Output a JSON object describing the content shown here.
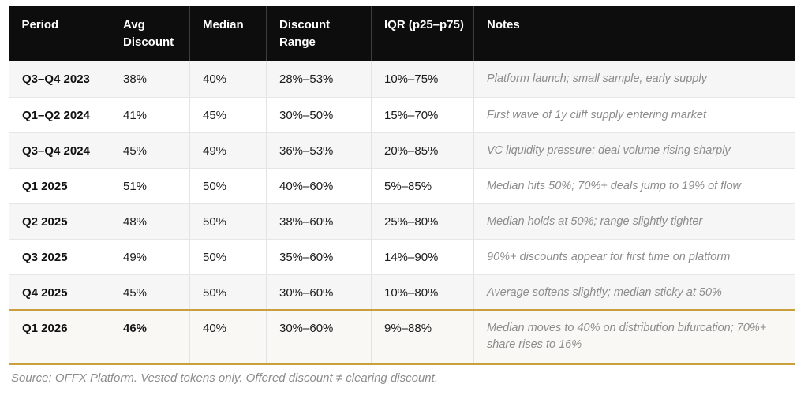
{
  "chart_data": {
    "type": "table",
    "columns": [
      "Period",
      "Avg Discount",
      "Median",
      "Discount Range",
      "IQR (p25–p75)",
      "Notes"
    ],
    "rows": [
      {
        "period": "Q3–Q4 2023",
        "avg": "38%",
        "median": "40%",
        "range": "28%–53%",
        "iqr": "10%–75%",
        "notes": "Platform launch; small sample, early supply",
        "highlight": false
      },
      {
        "period": "Q1–Q2 2024",
        "avg": "41%",
        "median": "45%",
        "range": "30%–50%",
        "iqr": "15%–70%",
        "notes": "First wave of 1y cliff supply entering market",
        "highlight": false
      },
      {
        "period": "Q3–Q4 2024",
        "avg": "45%",
        "median": "49%",
        "range": "36%–53%",
        "iqr": "20%–85%",
        "notes": "VC liquidity pressure; deal volume rising sharply",
        "highlight": false
      },
      {
        "period": "Q1 2025",
        "avg": "51%",
        "median": "50%",
        "range": "40%–60%",
        "iqr": "5%–85%",
        "notes": "Median hits 50%; 70%+ deals jump to 19% of flow",
        "highlight": false
      },
      {
        "period": "Q2 2025",
        "avg": "48%",
        "median": "50%",
        "range": "38%–60%",
        "iqr": "25%–80%",
        "notes": "Median holds at 50%; range slightly tighter",
        "highlight": false
      },
      {
        "period": "Q3 2025",
        "avg": "49%",
        "median": "50%",
        "range": "35%–60%",
        "iqr": "14%–90%",
        "notes": "90%+ discounts appear for first time on platform",
        "highlight": false
      },
      {
        "period": "Q4 2025",
        "avg": "45%",
        "median": "50%",
        "range": "30%–60%",
        "iqr": "10%–80%",
        "notes": "Average softens slightly; median sticky at 50%",
        "highlight": false
      },
      {
        "period": "Q1 2026",
        "avg": "46%",
        "median": "40%",
        "range": "30%–60%",
        "iqr": "9%–88%",
        "notes": "Median moves to 40% on distribution bifurcation; 70%+ share rises to 16%",
        "highlight": true
      }
    ],
    "source_note": "Source: OFFX Platform. Vested tokens only. Offered discount ≠ clearing discount."
  },
  "colors": {
    "header_bg": "#0d0d0d",
    "header_text": "#ffffff",
    "row_alt_bg": "#f6f6f6",
    "highlight_row_bg": "#faf8f4",
    "highlight_border": "#c9a03c",
    "body_text": "#1c1c1c",
    "notes_text": "#8c8c8c",
    "grid_line": "#e3e3e3"
  }
}
